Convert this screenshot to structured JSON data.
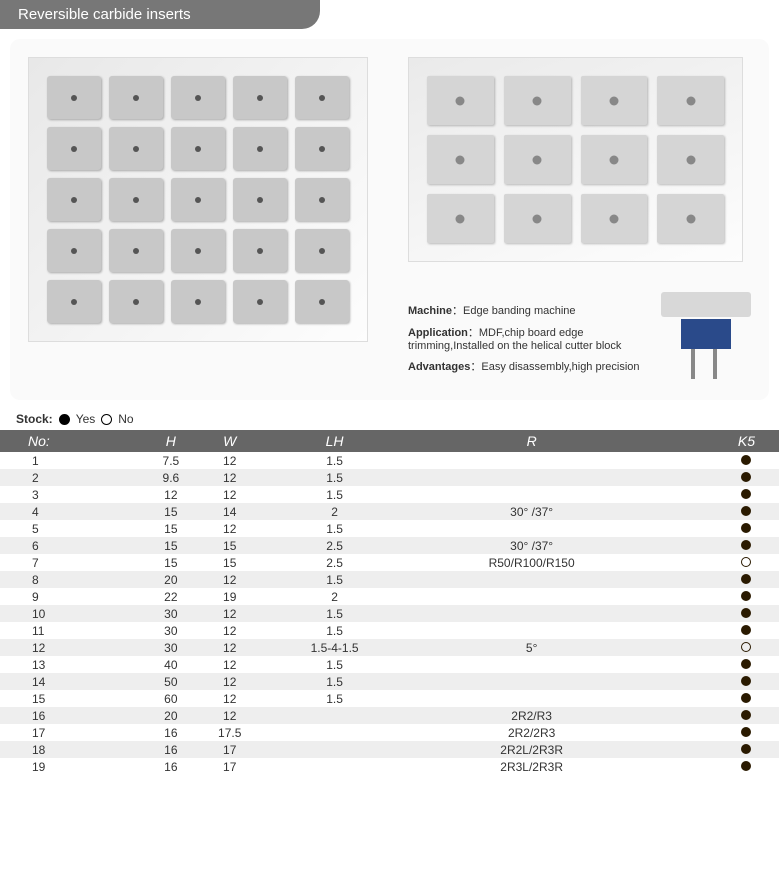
{
  "title": "Reversible carbide inserts",
  "info": {
    "machine_label": "Machine",
    "machine_value": "Edge banding machine",
    "application_label": "Application",
    "application_value": "MDF,chip board edge trimming,Installed on the helical cutter block",
    "advantages_label": "Advantages",
    "advantages_value": "Easy disassembly,high precision"
  },
  "stock": {
    "label": "Stock:",
    "yes": "Yes",
    "no": "No"
  },
  "table": {
    "columns": [
      "No:",
      "H",
      "W",
      "LH",
      "R",
      "K5"
    ],
    "rows": [
      {
        "no": "1",
        "h": "7.5",
        "w": "12",
        "lh": "1.5",
        "r": "",
        "k5": "yes"
      },
      {
        "no": "2",
        "h": "9.6",
        "w": "12",
        "lh": "1.5",
        "r": "",
        "k5": "yes"
      },
      {
        "no": "3",
        "h": "12",
        "w": "12",
        "lh": "1.5",
        "r": "",
        "k5": "yes"
      },
      {
        "no": "4",
        "h": "15",
        "w": "14",
        "lh": "2",
        "r": "30° /37°",
        "k5": "yes"
      },
      {
        "no": "5",
        "h": "15",
        "w": "12",
        "lh": "1.5",
        "r": "",
        "k5": "yes"
      },
      {
        "no": "6",
        "h": "15",
        "w": "15",
        "lh": "2.5",
        "r": "30° /37°",
        "k5": "yes"
      },
      {
        "no": "7",
        "h": "15",
        "w": "15",
        "lh": "2.5",
        "r": "R50/R100/R150",
        "k5": "no"
      },
      {
        "no": "8",
        "h": "20",
        "w": "12",
        "lh": "1.5",
        "r": "",
        "k5": "yes"
      },
      {
        "no": "9",
        "h": "22",
        "w": "19",
        "lh": "2",
        "r": "",
        "k5": "yes"
      },
      {
        "no": "10",
        "h": "30",
        "w": "12",
        "lh": "1.5",
        "r": "",
        "k5": "yes"
      },
      {
        "no": "11",
        "h": "30",
        "w": "12",
        "lh": "1.5",
        "r": "",
        "k5": "yes"
      },
      {
        "no": "12",
        "h": "30",
        "w": "12",
        "lh": "1.5-4-1.5",
        "r": "5°",
        "k5": "no"
      },
      {
        "no": "13",
        "h": "40",
        "w": "12",
        "lh": "1.5",
        "r": "",
        "k5": "yes"
      },
      {
        "no": "14",
        "h": "50",
        "w": "12",
        "lh": "1.5",
        "r": "",
        "k5": "yes"
      },
      {
        "no": "15",
        "h": "60",
        "w": "12",
        "lh": "1.5",
        "r": "",
        "k5": "yes"
      },
      {
        "no": "16",
        "h": "20",
        "w": "12",
        "lh": "",
        "r": "2R2/R3",
        "k5": "yes"
      },
      {
        "no": "17",
        "h": "16",
        "w": "17.5",
        "lh": "",
        "r": "2R2/2R3",
        "k5": "yes"
      },
      {
        "no": "18",
        "h": "16",
        "w": "17",
        "lh": "",
        "r": "2R2L/2R3R",
        "k5": "yes"
      },
      {
        "no": "19",
        "h": "16",
        "w": "17",
        "lh": "",
        "r": "2R3L/2R3R",
        "k5": "yes"
      }
    ],
    "colors": {
      "header_bg": "#666666",
      "row_even_bg": "#eeeeee",
      "row_odd_bg": "#ffffff",
      "dot_fill": "#2a1a00"
    }
  }
}
